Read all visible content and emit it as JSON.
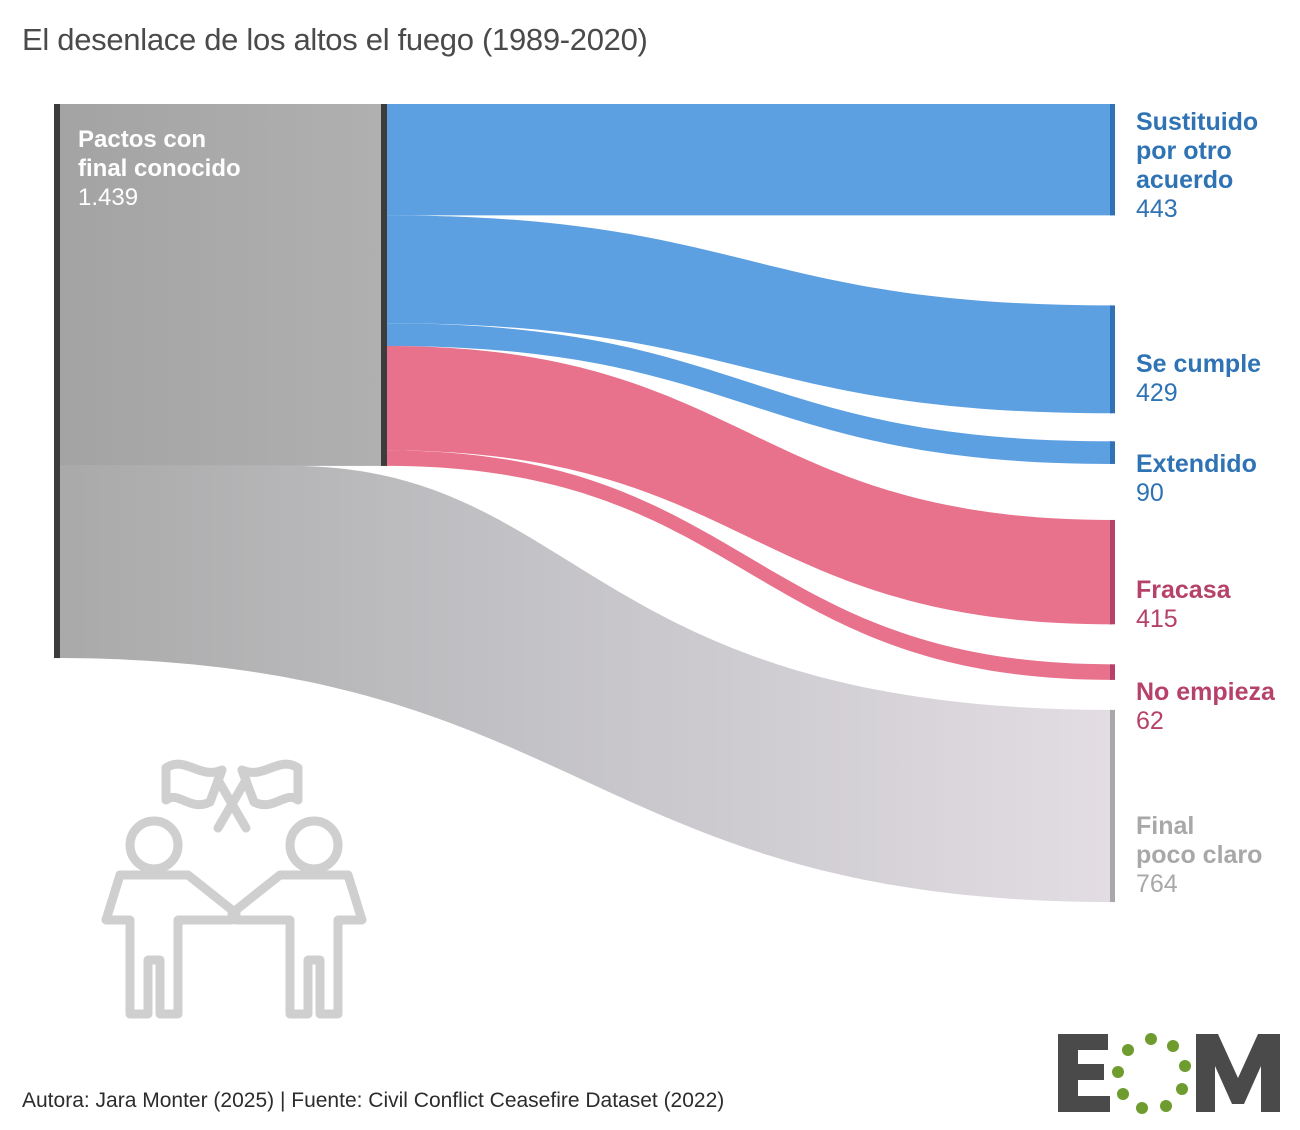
{
  "title": "El desenlace de los altos el fuego (1989-2020)",
  "footer": "Autora: Jara Monter (2025) | Fuente: Civil Conflict Ceasefire Dataset (2022)",
  "logo": {
    "text": "EOM",
    "color": "#4a4a4a",
    "dots_color": "#6e9c2f"
  },
  "illustration": {
    "icon": "two-people-with-crossed-flags-icon",
    "color": "#cfcfcf"
  },
  "chart_data": {
    "type": "sankey",
    "title": "El desenlace de los altos el fuego (1989-2020)",
    "source_nodes": [
      {
        "id": "conocido",
        "label_line1": "Pactos con",
        "label_line2": "final conocido",
        "value_label": "1.439",
        "value": 1439,
        "color": "#a6a6a6"
      }
    ],
    "target_nodes": [
      {
        "id": "sustituido",
        "label_lines": [
          "Sustituido",
          "por otro",
          "acuerdo"
        ],
        "value_label": "443",
        "value": 443,
        "color": "#2f73b4",
        "flow_color": "#5ca0e2"
      },
      {
        "id": "cumple",
        "label_lines": [
          "Se cumple"
        ],
        "value_label": "429",
        "value": 429,
        "color": "#2f73b4",
        "flow_color": "#5ca0e2"
      },
      {
        "id": "extendido",
        "label_lines": [
          "Extendido"
        ],
        "value_label": "90",
        "value": 90,
        "color": "#2f73b4",
        "flow_color": "#5ca0e2"
      },
      {
        "id": "fracasa",
        "label_lines": [
          "Fracasa"
        ],
        "value_label": "415",
        "value": 415,
        "color": "#b6416a",
        "flow_color": "#e8718c"
      },
      {
        "id": "noempieza",
        "label_lines": [
          "No empieza"
        ],
        "value_label": "62",
        "value": 62,
        "color": "#b6416a",
        "flow_color": "#e8718c"
      },
      {
        "id": "pococlaro",
        "label_lines": [
          "Final",
          "poco claro"
        ],
        "value_label": "764",
        "value": 764,
        "color": "#a8a8a8",
        "flow_color": "#c9c7cb"
      }
    ],
    "flows": [
      {
        "from": "conocido",
        "to": "sustituido",
        "value": 443
      },
      {
        "from": "conocido",
        "to": "cumple",
        "value": 429
      },
      {
        "from": "conocido",
        "to": "extendido",
        "value": 90
      },
      {
        "from": "conocido",
        "to": "fracasa",
        "value": 415
      },
      {
        "from": "conocido",
        "to": "noempieza",
        "value": 62
      },
      {
        "from": "origin",
        "to": "pococlaro",
        "value": 764
      }
    ]
  }
}
